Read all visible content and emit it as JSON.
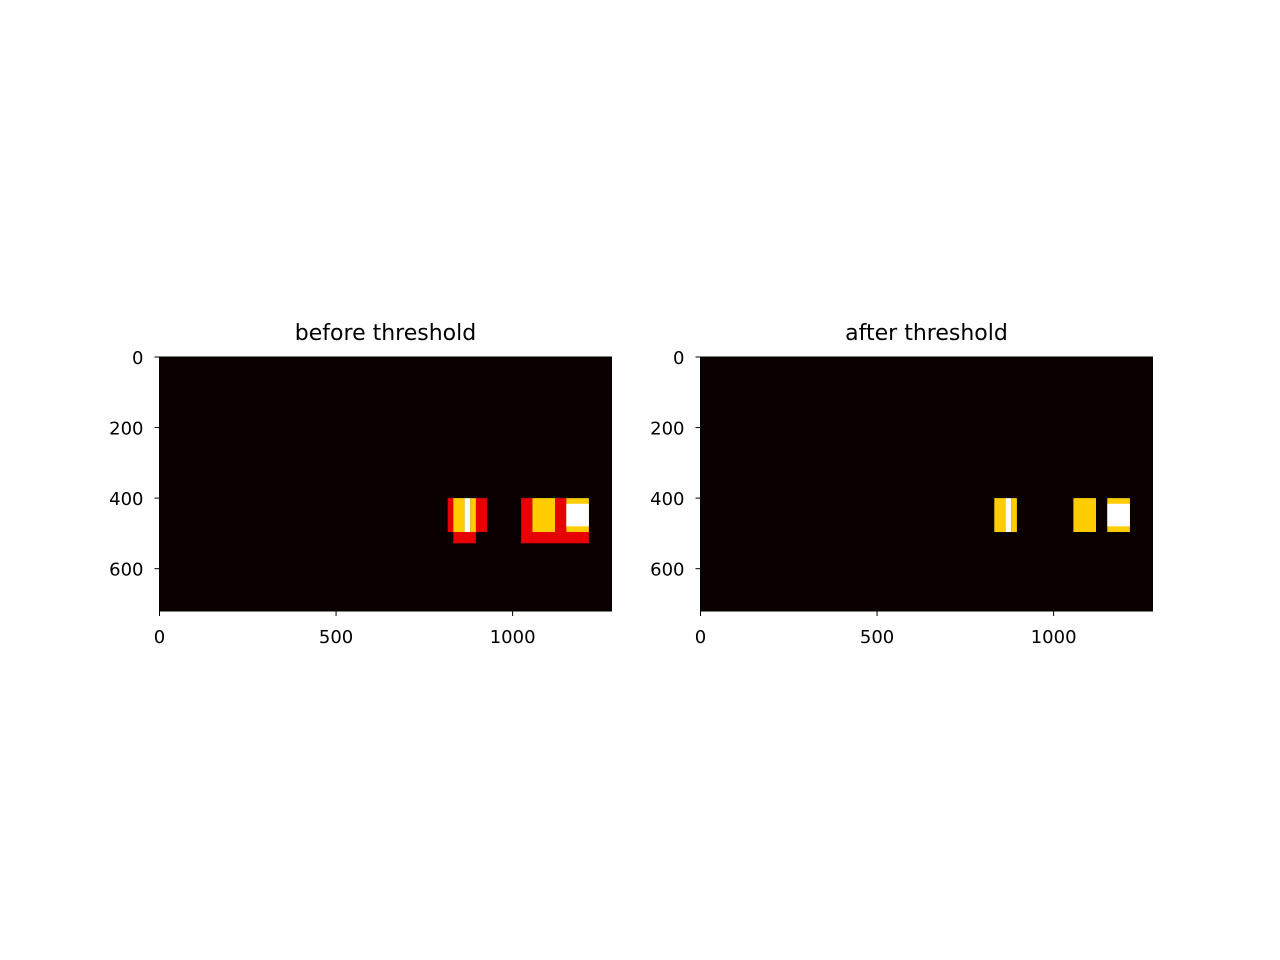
{
  "chart_data": [
    {
      "type": "heatmap",
      "title": "before threshold",
      "xlabel": "",
      "ylabel": "",
      "xlim": [
        0,
        1280
      ],
      "ylim": [
        720,
        0
      ],
      "xticks": [
        "0",
        "500",
        "1000"
      ],
      "yticks": [
        "0",
        "200",
        "400",
        "600"
      ],
      "colormap": "hot",
      "background_color": "#0b0000",
      "color_levels": {
        "low": "#e80000",
        "mid": "#ffcc00",
        "high": "#ffffff"
      },
      "rects": [
        {
          "x0": 816,
          "x1": 832,
          "y0": 400,
          "y1": 496,
          "level": "low"
        },
        {
          "x0": 832,
          "x1": 896,
          "y0": 496,
          "y1": 528,
          "level": "low"
        },
        {
          "x0": 896,
          "x1": 928,
          "y0": 400,
          "y1": 496,
          "level": "low"
        },
        {
          "x0": 832,
          "x1": 864,
          "y0": 400,
          "y1": 496,
          "level": "mid"
        },
        {
          "x0": 864,
          "x1": 880,
          "y0": 400,
          "y1": 496,
          "level": "high"
        },
        {
          "x0": 880,
          "x1": 896,
          "y0": 400,
          "y1": 496,
          "level": "mid"
        },
        {
          "x0": 1024,
          "x1": 1056,
          "y0": 400,
          "y1": 528,
          "level": "low"
        },
        {
          "x0": 1056,
          "x1": 1216,
          "y0": 496,
          "y1": 528,
          "level": "low"
        },
        {
          "x0": 1120,
          "x1": 1152,
          "y0": 400,
          "y1": 496,
          "level": "low"
        },
        {
          "x0": 1056,
          "x1": 1120,
          "y0": 400,
          "y1": 496,
          "level": "mid"
        },
        {
          "x0": 1152,
          "x1": 1216,
          "y0": 400,
          "y1": 496,
          "level": "mid"
        },
        {
          "x0": 1152,
          "x1": 1216,
          "y0": 416,
          "y1": 480,
          "level": "high"
        }
      ]
    },
    {
      "type": "heatmap",
      "title": "after threshold",
      "xlabel": "",
      "ylabel": "",
      "xlim": [
        0,
        1280
      ],
      "ylim": [
        720,
        0
      ],
      "xticks": [
        "0",
        "500",
        "1000"
      ],
      "yticks": [
        "0",
        "200",
        "400",
        "600"
      ],
      "colormap": "hot",
      "background_color": "#0b0000",
      "color_levels": {
        "low": "#e80000",
        "mid": "#ffcc00",
        "high": "#ffffff"
      },
      "rects": [
        {
          "x0": 832,
          "x1": 864,
          "y0": 400,
          "y1": 496,
          "level": "mid"
        },
        {
          "x0": 864,
          "x1": 880,
          "y0": 400,
          "y1": 496,
          "level": "high"
        },
        {
          "x0": 880,
          "x1": 896,
          "y0": 400,
          "y1": 496,
          "level": "mid"
        },
        {
          "x0": 1056,
          "x1": 1120,
          "y0": 400,
          "y1": 496,
          "level": "mid"
        },
        {
          "x0": 1152,
          "x1": 1216,
          "y0": 400,
          "y1": 496,
          "level": "mid"
        },
        {
          "x0": 1152,
          "x1": 1216,
          "y0": 416,
          "y1": 480,
          "level": "high"
        }
      ]
    }
  ]
}
